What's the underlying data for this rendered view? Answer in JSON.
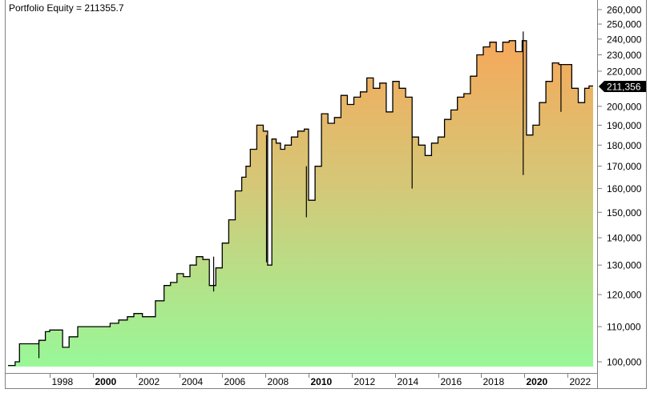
{
  "title": "Portfolio Equity = 211355.7",
  "last_value_label": "211,356",
  "colors": {
    "fill_top": "#f2ad5e",
    "fill_bottom": "#98f898",
    "line": "#000000",
    "axis": "#808080",
    "last_badge": "#000000"
  },
  "chart_data": {
    "type": "area",
    "title": "Portfolio Equity = 211355.7",
    "xlabel": "",
    "ylabel": "",
    "y_scale": "log",
    "ylim": [
      98000,
      262000
    ],
    "grid": false,
    "legend": "none",
    "y_ticks": [
      "260,000",
      "250,000",
      "240,000",
      "230,000",
      "220,000",
      "200,000",
      "190,000",
      "180,000",
      "170,000",
      "160,000",
      "150,000",
      "140,000",
      "130,000",
      "120,000",
      "110,000",
      "100,000"
    ],
    "x_ticks": [
      {
        "label": "1998",
        "bold": false
      },
      {
        "label": "2000",
        "bold": true
      },
      {
        "label": "2002",
        "bold": false
      },
      {
        "label": "2004",
        "bold": false
      },
      {
        "label": "2006",
        "bold": false
      },
      {
        "label": "2008",
        "bold": false
      },
      {
        "label": "2010",
        "bold": true
      },
      {
        "label": "2012",
        "bold": false
      },
      {
        "label": "2014",
        "bold": false
      },
      {
        "label": "2016",
        "bold": false
      },
      {
        "label": "2018",
        "bold": false
      },
      {
        "label": "2020",
        "bold": true
      },
      {
        "label": "2022",
        "bold": false
      }
    ],
    "last_value": 211355.7,
    "series": [
      {
        "name": "Portfolio Equity",
        "x": [
          1996.0,
          1996.4,
          1996.6,
          1996.9,
          1997.5,
          1997.8,
          1998.0,
          1998.6,
          1998.9,
          1999.3,
          1999.6,
          2000.0,
          2000.4,
          2000.8,
          2001.2,
          2001.6,
          2001.9,
          2002.3,
          2002.6,
          2002.9,
          2003.3,
          2003.6,
          2003.9,
          2004.2,
          2004.5,
          2004.8,
          2005.1,
          2005.4,
          2005.7,
          2006.0,
          2006.3,
          2006.6,
          2006.9,
          2007.1,
          2007.3,
          2007.6,
          2007.9,
          2008.1,
          2008.3,
          2008.5,
          2008.7,
          2008.9,
          2009.2,
          2009.5,
          2009.8,
          2010.0,
          2010.3,
          2010.6,
          2010.9,
          2011.2,
          2011.5,
          2011.8,
          2012.1,
          2012.4,
          2012.7,
          2013.0,
          2013.3,
          2013.6,
          2013.9,
          2014.2,
          2014.5,
          2014.8,
          2015.1,
          2015.4,
          2015.7,
          2016.0,
          2016.3,
          2016.6,
          2016.9,
          2017.2,
          2017.5,
          2017.8,
          2018.1,
          2018.4,
          2018.7,
          2019.0,
          2019.3,
          2019.6,
          2019.9,
          2020.1,
          2020.4,
          2020.7,
          2021.0,
          2021.3,
          2021.6,
          2021.9,
          2022.2,
          2022.5,
          2022.8,
          2023.0
        ],
        "values": [
          99000,
          100000,
          105000,
          105000,
          106000,
          108500,
          109000,
          104000,
          107000,
          110000,
          110000,
          110000,
          110000,
          111000,
          112000,
          113000,
          114000,
          113000,
          113000,
          118000,
          123000,
          124000,
          127000,
          126000,
          130000,
          133000,
          132000,
          123000,
          129000,
          138000,
          147000,
          159000,
          165000,
          170000,
          178000,
          190000,
          187000,
          130000,
          183000,
          181000,
          178000,
          180000,
          184000,
          187000,
          188000,
          155000,
          170000,
          196000,
          191000,
          194000,
          206000,
          201000,
          205000,
          208000,
          216000,
          210000,
          213000,
          197000,
          214000,
          210000,
          205000,
          184000,
          180000,
          175000,
          181000,
          184000,
          193000,
          198000,
          205000,
          207000,
          217000,
          230000,
          235000,
          238000,
          232000,
          238000,
          239000,
          232000,
          239000,
          185000,
          190000,
          202000,
          214000,
          225000,
          224000,
          224000,
          210000,
          202000,
          210000,
          211356
        ]
      }
    ]
  }
}
